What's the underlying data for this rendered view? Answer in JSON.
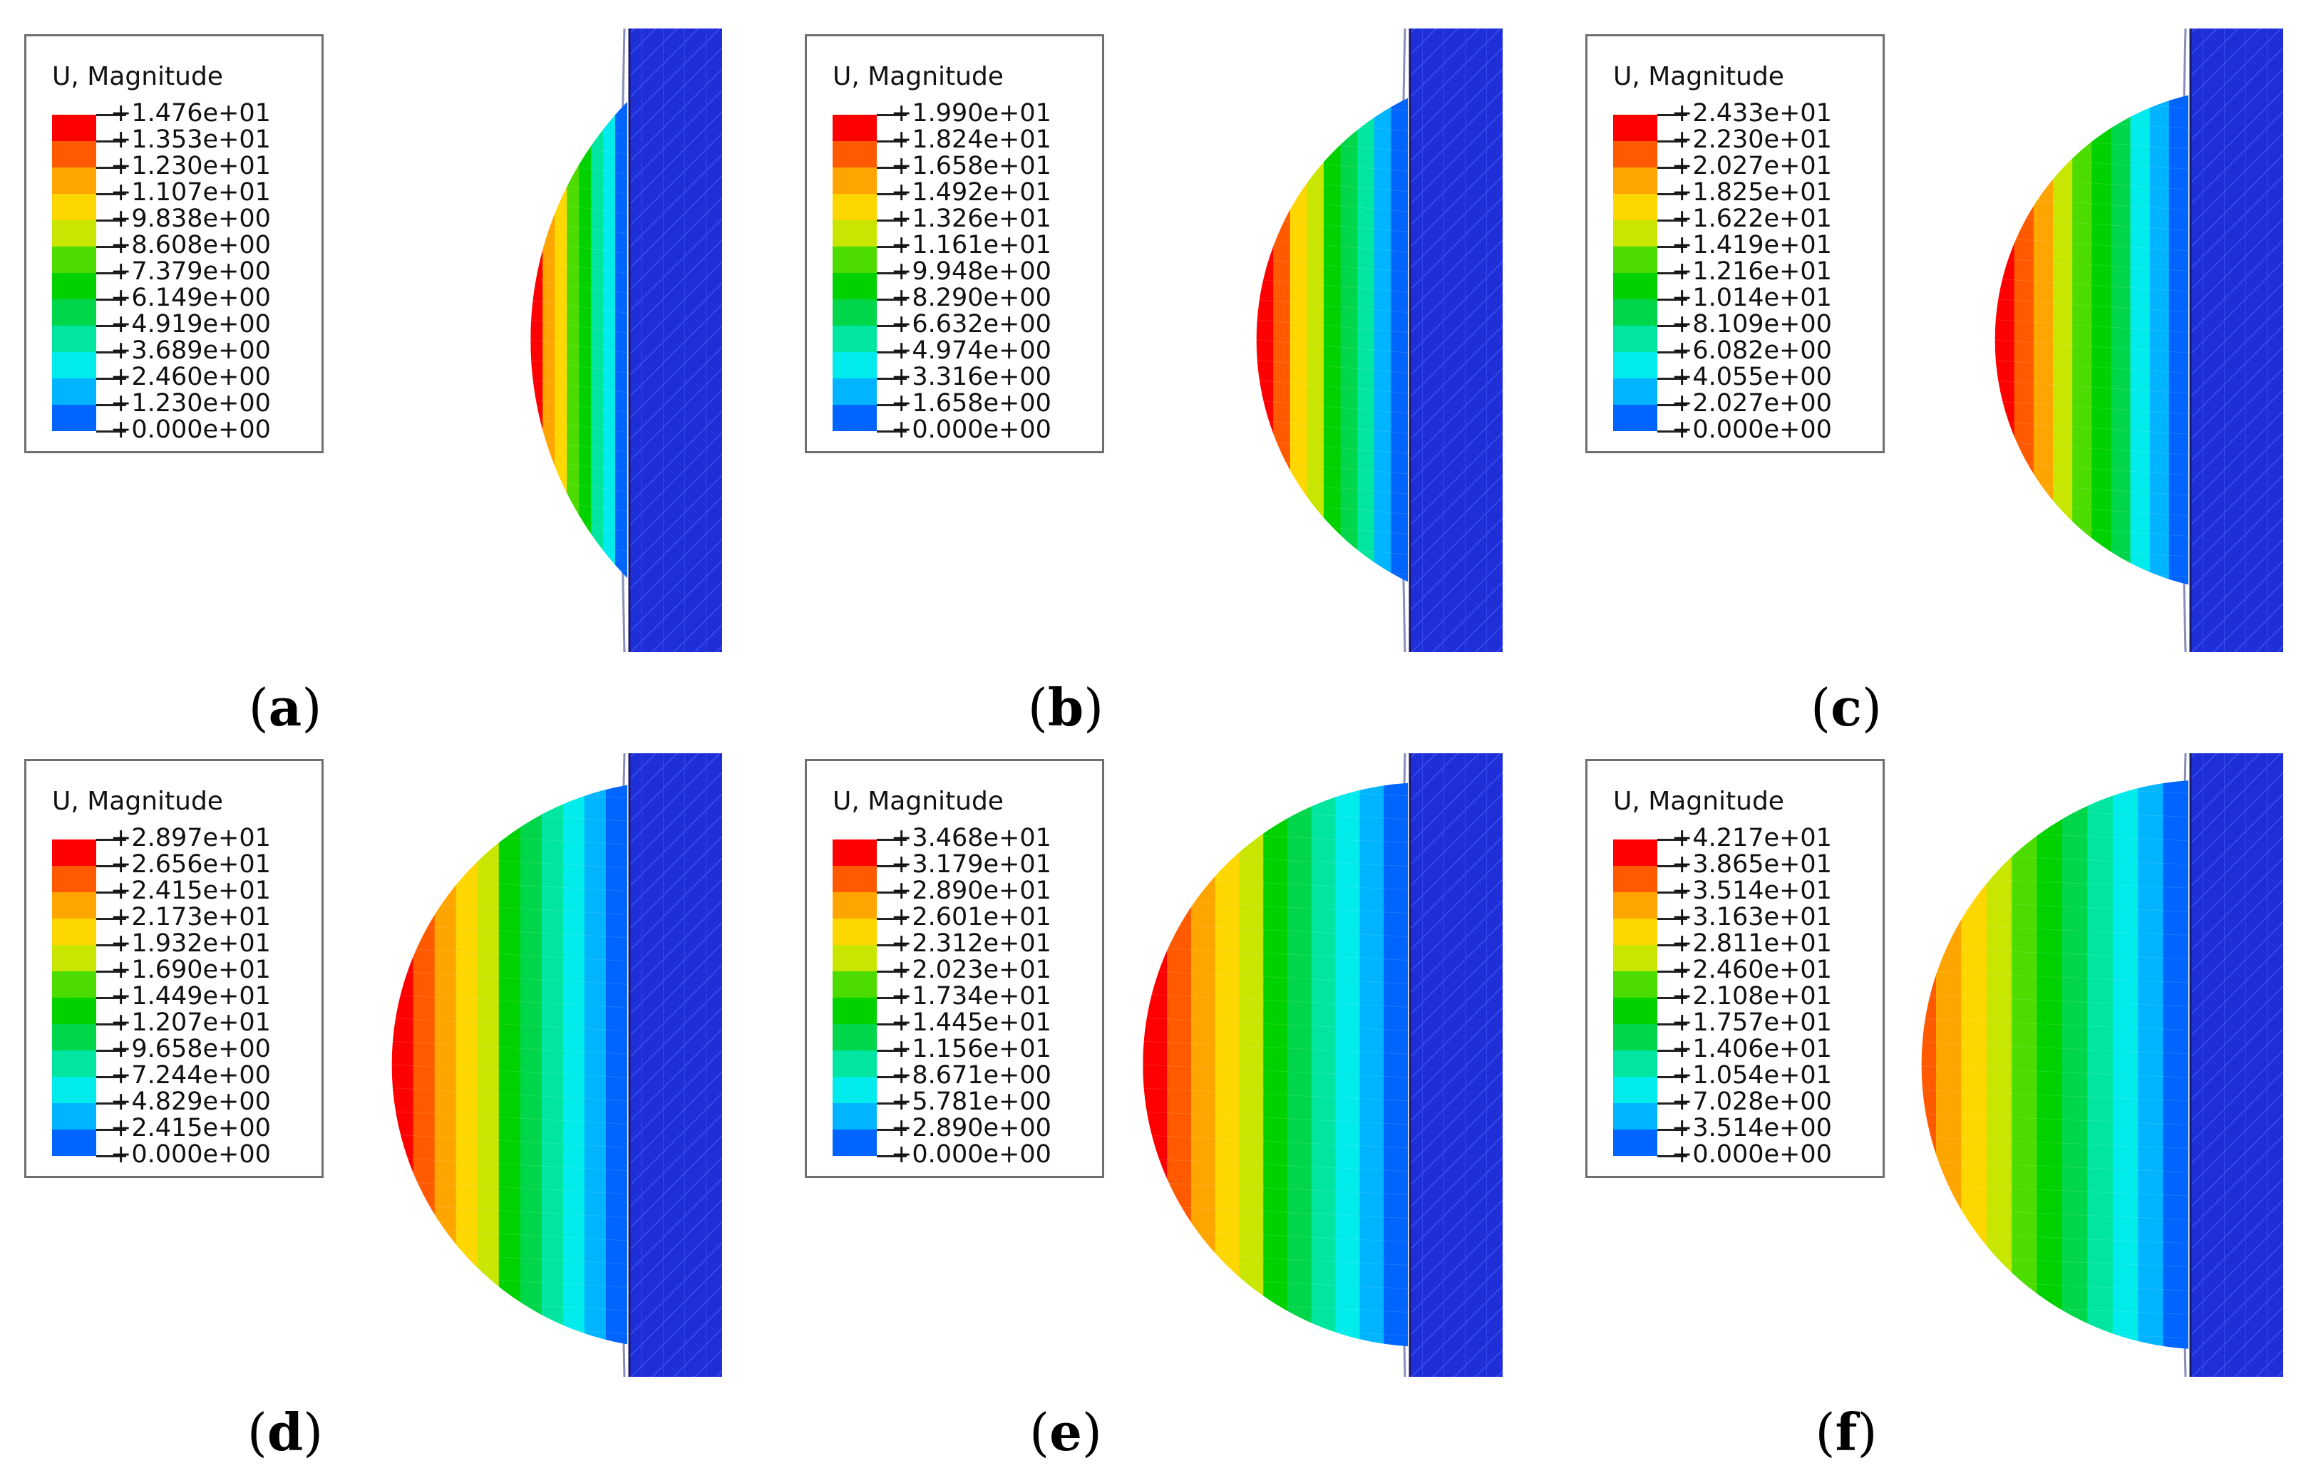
{
  "colormap": [
    "#ff0000",
    "#ff5a00",
    "#ffa500",
    "#ffd700",
    "#c8e600",
    "#4cdc00",
    "#00d200",
    "#00d64a",
    "#00e6a0",
    "#00ebeb",
    "#00b4ff",
    "#0064ff",
    "#0000ff"
  ],
  "wall_color": "#1f2fd8",
  "panels": [
    {
      "id": "a",
      "label": "(a)",
      "label_letter": "a",
      "legend_title": "U, Magnitude",
      "values": [
        "+1.476e+01",
        "+1.353e+01",
        "+1.230e+01",
        "+1.107e+01",
        "+9.838e+00",
        "+8.608e+00",
        "+7.379e+00",
        "+6.149e+00",
        "+4.919e+00",
        "+3.689e+00",
        "+2.460e+00",
        "+1.230e+00",
        "+0.000e+00"
      ],
      "dome_extent": 0.23
    },
    {
      "id": "b",
      "label": "(b)",
      "label_letter": "b",
      "legend_title": "U, Magnitude",
      "values": [
        "+1.990e+01",
        "+1.824e+01",
        "+1.658e+01",
        "+1.492e+01",
        "+1.326e+01",
        "+1.161e+01",
        "+9.948e+00",
        "+8.290e+00",
        "+6.632e+00",
        "+4.974e+00",
        "+3.316e+00",
        "+1.658e+00",
        "+0.000e+00"
      ],
      "dome_extent": 0.36
    },
    {
      "id": "c",
      "label": "(c)",
      "label_letter": "c",
      "legend_title": "U, Magnitude",
      "values": [
        "+2.433e+01",
        "+2.230e+01",
        "+2.027e+01",
        "+1.825e+01",
        "+1.622e+01",
        "+1.419e+01",
        "+1.216e+01",
        "+1.014e+01",
        "+8.109e+00",
        "+6.082e+00",
        "+4.055e+00",
        "+2.027e+00",
        "+0.000e+00"
      ],
      "dome_extent": 0.46
    },
    {
      "id": "d",
      "label": "(d)",
      "label_letter": "d",
      "legend_title": "U, Magnitude",
      "values": [
        "+2.897e+01",
        "+2.656e+01",
        "+2.415e+01",
        "+2.173e+01",
        "+1.932e+01",
        "+1.690e+01",
        "+1.449e+01",
        "+1.207e+01",
        "+9.658e+00",
        "+7.244e+00",
        "+4.829e+00",
        "+2.415e+00",
        "+0.000e+00"
      ],
      "dome_extent": 0.56
    },
    {
      "id": "e",
      "label": "(e)",
      "label_letter": "e",
      "legend_title": "U, Magnitude",
      "values": [
        "+3.468e+01",
        "+3.179e+01",
        "+2.890e+01",
        "+2.601e+01",
        "+2.312e+01",
        "+2.023e+01",
        "+1.734e+01",
        "+1.445e+01",
        "+1.156e+01",
        "+8.671e+00",
        "+5.781e+00",
        "+2.890e+00",
        "+0.000e+00"
      ],
      "dome_extent": 0.63
    },
    {
      "id": "f",
      "label": "(f)",
      "label_letter": "f",
      "legend_title": "U, Magnitude",
      "values": [
        "+4.217e+01",
        "+3.865e+01",
        "+3.514e+01",
        "+3.163e+01",
        "+2.811e+01",
        "+2.460e+01",
        "+2.108e+01",
        "+1.757e+01",
        "+1.406e+01",
        "+1.054e+01",
        "+7.028e+00",
        "+3.514e+00",
        "+0.000e+00"
      ],
      "dome_extent": 0.72
    }
  ]
}
